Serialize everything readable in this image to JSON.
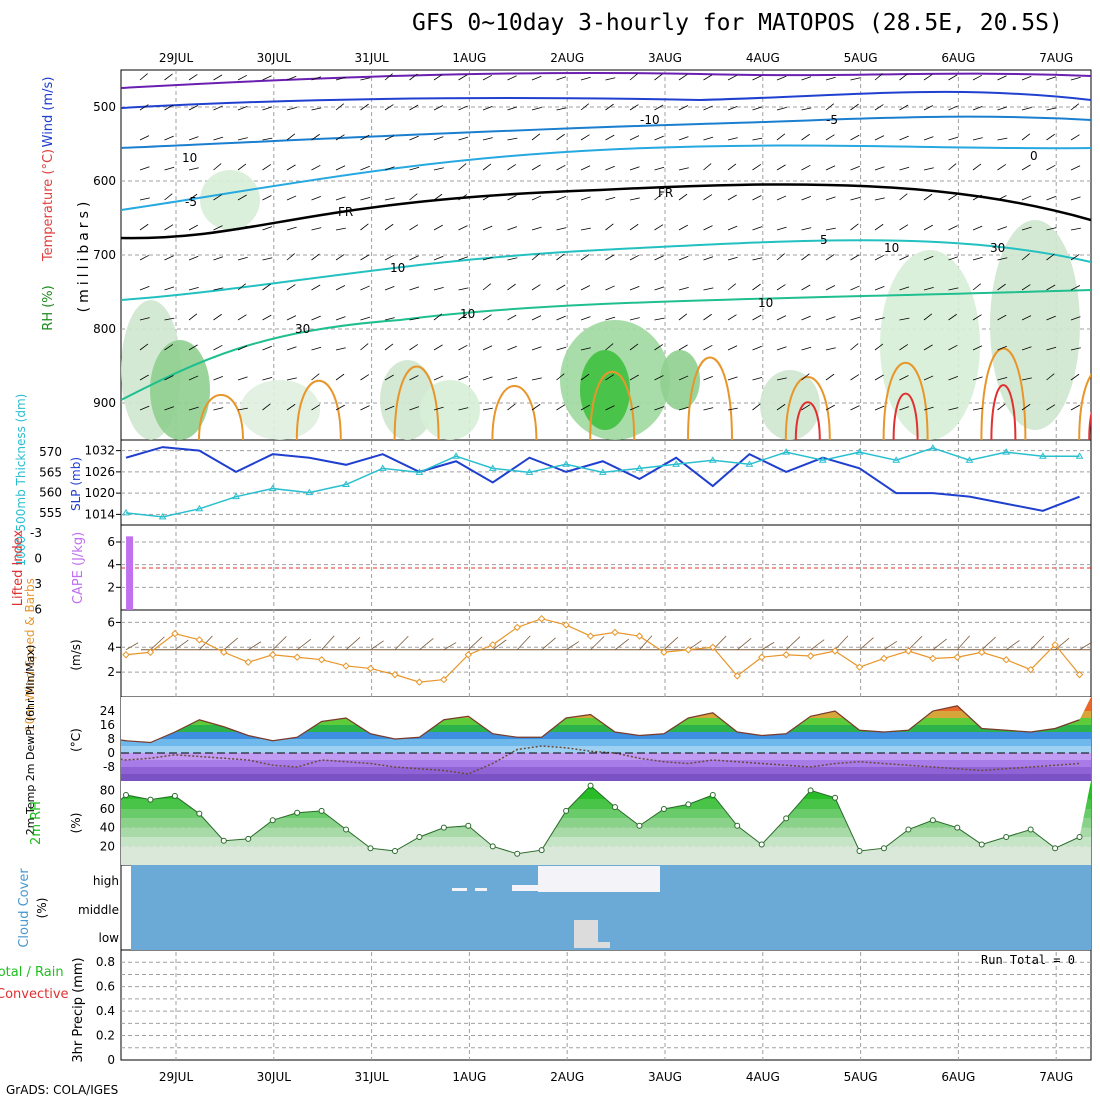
{
  "title": "GFS 0~10day 3-hourly for MATOPOS (28.5E, 20.5S)",
  "footer": "GrADS: COLA/IGES",
  "x_axis": {
    "date_labels": [
      "29JUL",
      "30JUL",
      "31JUL",
      "1AUG",
      "2AUG",
      "3AUG",
      "4AUG",
      "5AUG",
      "6AUG",
      "7AUG"
    ]
  },
  "colors": {
    "grid": "#a0a0a0",
    "slp": "#1f3fcf",
    "thickness": "#2abfcf",
    "cape": "#c070f0",
    "lifted_index": "#e03030",
    "wind10m": "#e8962a",
    "barbs": "#7a5a3a",
    "rh_green": "#1fbf1f",
    "cloud": "#6ba9d6",
    "precip": "#1fbf1f"
  },
  "panels": {
    "upper": {
      "ylabels": [
        "RH (%)",
        "Temperature (°C)",
        "Wind (m/s)"
      ],
      "ylabel_right": "(millibars)",
      "yticks": [
        "500",
        "600",
        "700",
        "800",
        "900"
      ],
      "contour_labels": [
        "-10",
        "-5",
        "-5",
        "5",
        "10",
        "10",
        "0",
        "FR",
        "FR",
        "10",
        "10",
        "10",
        "30",
        "30"
      ]
    },
    "slp": {
      "ylabel_left": "1000-500mb Thickness (dm)",
      "ylabel_right": "SLP (mb)",
      "yticks_left": [
        "570",
        "565",
        "560",
        "555"
      ],
      "yticks_right": [
        "1032",
        "1026",
        "1020",
        "1014"
      ]
    },
    "cape": {
      "ylabel_left": "Lifted Index",
      "ylabel_right": "CAPE (J/kg)",
      "yticks_left": [
        "-3",
        "0",
        "3",
        "6"
      ],
      "yticks_right": [
        "6",
        "4",
        "2"
      ]
    },
    "wind10m": {
      "ylabel": "10m Wind Speed & Barbs",
      "unit": "(m/s)",
      "yticks": [
        "6",
        "4",
        "2"
      ]
    },
    "temp": {
      "ylabel": "2m Temp 2m DewPt (6hr Min/Max)",
      "unit": "(°C)",
      "yticks": [
        "24",
        "16",
        "8",
        "0",
        "-8"
      ]
    },
    "rh": {
      "ylabel": "2m RH",
      "unit": "(%)",
      "yticks": [
        "80",
        "60",
        "40",
        "20"
      ]
    },
    "cloud": {
      "ylabel": "Cloud Cover",
      "unit": "(%)",
      "levels": [
        "high",
        "middle",
        "low"
      ]
    },
    "precip": {
      "ylabel": "3hr Precip (mm)",
      "ylabel_left": "Total / Rain",
      "ylabel_left2": "Convective",
      "yticks": [
        "0.8",
        "0.6",
        "0.4",
        "0.2",
        "0"
      ],
      "run_total": "Run Total = 0"
    }
  },
  "chart_data": [
    {
      "type": "line",
      "title": "SLP / 1000-500mb Thickness",
      "x_days": [
        0,
        0.375,
        0.75,
        1.125,
        1.5,
        1.875,
        2.25,
        2.625,
        3.0,
        3.375,
        3.75,
        4.125,
        4.5,
        4.875,
        5.25,
        5.625,
        6.0,
        6.375,
        6.75,
        7.125,
        7.5,
        7.875,
        8.25,
        8.625,
        9.0,
        9.375,
        9.75
      ],
      "series": [
        {
          "name": "SLP (mb)",
          "values": [
            1030,
            1033,
            1032,
            1026,
            1031,
            1030,
            1028,
            1031,
            1026,
            1029,
            1023,
            1030,
            1026,
            1029,
            1024,
            1030,
            1022,
            1031,
            1026,
            1030,
            1027,
            1020,
            1020,
            1019,
            1017,
            1015,
            1019
          ]
        },
        {
          "name": "Thickness (dm)",
          "values": [
            555,
            554,
            556,
            559,
            561,
            560,
            562,
            566,
            565,
            569,
            566,
            565,
            567,
            565,
            566,
            567,
            568,
            567,
            570,
            568,
            570,
            568,
            571,
            568,
            570,
            569,
            569
          ]
        }
      ]
    },
    {
      "type": "bar",
      "title": "CAPE / Lifted Index",
      "x_days": [
        -0.48
      ],
      "values": [
        6.5
      ],
      "lifted_index_zero_line": 0
    },
    {
      "type": "line",
      "title": "10m Wind Speed",
      "x_days": [
        0,
        0.25,
        0.5,
        0.75,
        1.0,
        1.25,
        1.5,
        1.75,
        2.0,
        2.25,
        2.5,
        2.75,
        3.0,
        3.25,
        3.5,
        3.75,
        4.0,
        4.25,
        4.5,
        4.75,
        5.0,
        5.25,
        5.5,
        5.75,
        6.0,
        6.25,
        6.5,
        6.75,
        7.0,
        7.25,
        7.5,
        7.75,
        8.0,
        8.25,
        8.5,
        8.75,
        9.0,
        9.25,
        9.5,
        9.75
      ],
      "series": [
        {
          "name": "Wind speed (m/s)",
          "values": [
            3.4,
            3.6,
            5.1,
            4.6,
            3.6,
            2.8,
            3.4,
            3.2,
            3.0,
            2.5,
            2.3,
            1.8,
            1.2,
            1.4,
            3.4,
            4.2,
            5.6,
            6.3,
            5.8,
            4.9,
            5.2,
            4.9,
            3.6,
            3.8,
            4.0,
            1.7,
            3.2,
            3.4,
            3.3,
            3.7,
            2.4,
            3.1,
            3.7,
            3.1,
            3.2,
            3.6,
            3.0,
            2.2,
            4.2,
            1.8
          ]
        }
      ],
      "ylim": [
        0,
        7
      ]
    },
    {
      "type": "area",
      "title": "2m Temp / DewPt",
      "x_days": [
        -0.5,
        -0.25,
        0,
        0.25,
        0.5,
        0.75,
        1.0,
        1.25,
        1.5,
        1.75,
        2.0,
        2.25,
        2.5,
        2.75,
        3.0,
        3.25,
        3.5,
        3.75,
        4.0,
        4.25,
        4.5,
        4.75,
        5.0,
        5.25,
        5.5,
        5.75,
        6.0,
        6.25,
        6.5,
        6.75,
        7.0,
        7.25,
        7.5,
        7.75,
        8.0,
        8.25,
        8.5,
        8.75,
        9.0,
        9.25,
        9.5,
        9.75
      ],
      "series": [
        {
          "name": "2m Temp",
          "values": [
            11,
            9,
            7,
            6,
            12,
            19,
            15,
            10,
            7,
            9,
            18,
            20,
            11,
            8,
            9,
            19,
            21,
            11,
            9,
            9,
            20,
            22,
            12,
            10,
            11,
            20,
            23,
            12,
            10,
            11,
            21,
            24,
            13,
            12,
            13,
            24,
            27,
            14,
            13,
            12,
            14,
            19
          ]
        },
        {
          "name": "2m DewPt",
          "values": [
            0,
            -2,
            -4,
            -3,
            -1,
            -2,
            -3,
            -4,
            -7,
            -8,
            -4,
            -5,
            -6,
            -8,
            -9,
            -10,
            -12,
            -6,
            2,
            4,
            3,
            1,
            0,
            -3,
            -5,
            -6,
            -4,
            -5,
            -6,
            -7,
            -8,
            -6,
            -5,
            -6,
            -7,
            -8,
            -9,
            -10,
            -9,
            -8,
            -7,
            -6
          ]
        }
      ],
      "ylim": [
        -16,
        32
      ]
    },
    {
      "type": "area",
      "title": "2m RH",
      "x_days": [
        -0.5,
        -0.25,
        0,
        0.25,
        0.5,
        0.75,
        1.0,
        1.25,
        1.5,
        1.75,
        2.0,
        2.25,
        2.5,
        2.75,
        3.0,
        3.25,
        3.5,
        3.75,
        4.0,
        4.25,
        4.5,
        4.75,
        5.0,
        5.25,
        5.5,
        5.75,
        6.0,
        6.25,
        6.5,
        6.75,
        7.0,
        7.25,
        7.5,
        7.75,
        8.0,
        8.25,
        8.5,
        8.75,
        9.0,
        9.25,
        9.5,
        9.75
      ],
      "series": [
        {
          "name": "2m RH",
          "values": [
            60,
            52,
            75,
            70,
            74,
            55,
            26,
            28,
            48,
            56,
            58,
            38,
            18,
            15,
            30,
            40,
            42,
            20,
            12,
            16,
            58,
            85,
            62,
            42,
            60,
            65,
            75,
            42,
            22,
            50,
            80,
            72,
            15,
            18,
            38,
            48,
            40,
            22,
            30,
            38,
            18,
            30
          ]
        }
      ],
      "ylim": [
        0,
        90
      ]
    },
    {
      "type": "bar",
      "title": "3hr Precip",
      "values": [],
      "ylim": [
        0,
        0.9
      ]
    }
  ]
}
